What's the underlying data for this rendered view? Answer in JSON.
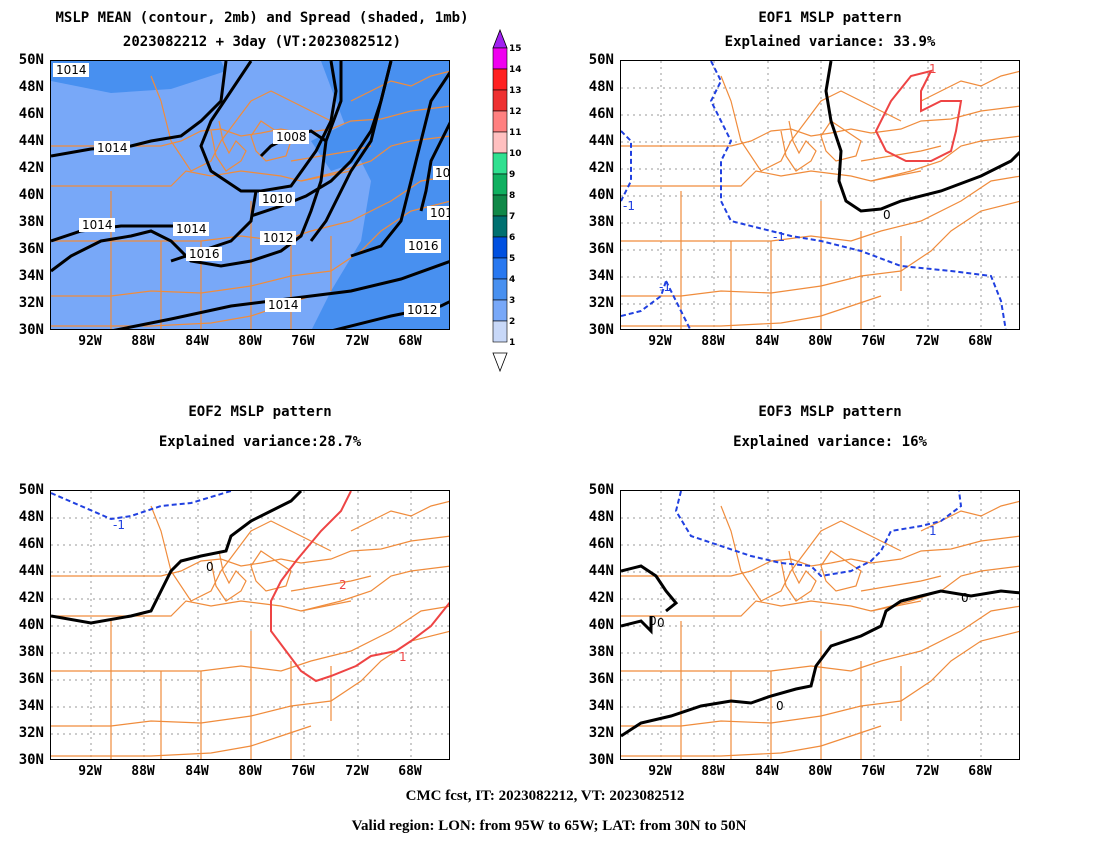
{
  "panels": {
    "mean": {
      "title_line1": "MSLP MEAN (contour, 2mb) and Spread (shaded, 1mb)",
      "title_line2": "2023082212 + 3day (VT:2023082512)",
      "contour_labels": [
        "1014",
        "1014",
        "1014",
        "1014",
        "1008",
        "1010",
        "1012",
        "1016",
        "1016",
        "1014",
        "1012",
        "101",
        "10"
      ]
    },
    "eof1": {
      "title_line1": "EOF1 MSLP pattern",
      "title_line2": "Explained variance: 33.9%",
      "contour_labels": [
        "1",
        "-1",
        "-1",
        "-1",
        "0"
      ]
    },
    "eof2": {
      "title_line1": "EOF2 MSLP pattern",
      "title_line2": "Explained variance:28.7%",
      "contour_labels": [
        "-1",
        "0",
        "2",
        "1"
      ]
    },
    "eof3": {
      "title_line1": "EOF3 MSLP pattern",
      "title_line2": "Explained variance: 16%",
      "contour_labels": [
        "1",
        "0",
        "0",
        "0",
        "0"
      ]
    }
  },
  "lat_labels": [
    "50N",
    "48N",
    "46N",
    "44N",
    "42N",
    "40N",
    "38N",
    "36N",
    "34N",
    "32N",
    "30N"
  ],
  "lon_labels": [
    "92W",
    "88W",
    "84W",
    "80W",
    "76W",
    "72W",
    "68W"
  ],
  "colorbar": {
    "labels": [
      "15",
      "14",
      "13",
      "12",
      "11",
      "10",
      "9",
      "8",
      "7",
      "6",
      "5",
      "4",
      "3",
      "2",
      "1"
    ],
    "colors": [
      "#a020f0",
      "#f000f0",
      "#ff2020",
      "#ee3030",
      "#ff8080",
      "#ffc0c0",
      "#30e090",
      "#10b060",
      "#108848",
      "#007070",
      "#0050e0",
      "#2878f0",
      "#4890f0",
      "#78a8f8",
      "#c8d8f8"
    ]
  },
  "colors": {
    "map_lines": "#f08c3c",
    "negative_contour": "#2040e0",
    "positive_contour": "#ee4444",
    "spread_light": "#78a8f8",
    "spread_dark": "#4890f0"
  },
  "footer": {
    "line1": "CMC fcst, IT: 2023082212, VT: 2023082512",
    "line2": "Valid region: LON: from 95W to 65W; LAT: from 30N to 50N"
  }
}
